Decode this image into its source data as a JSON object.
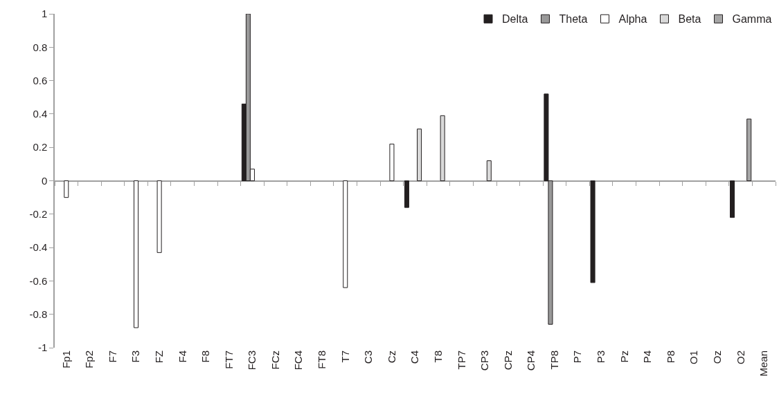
{
  "chart_data": {
    "type": "bar",
    "categories": [
      "Fp1",
      "Fp2",
      "F7",
      "F3",
      "FZ",
      "F4",
      "F8",
      "FT7",
      "FC3",
      "FCz",
      "FC4",
      "FT8",
      "T7",
      "C3",
      "Cz",
      "C4",
      "T8",
      "TP7",
      "CP3",
      "CPz",
      "CP4",
      "TP8",
      "P7",
      "P3",
      "Pz",
      "P4",
      "P8",
      "O1",
      "Oz",
      "O2",
      "Mean"
    ],
    "series": [
      {
        "name": "Delta",
        "color": "#231f20",
        "values": [
          null,
          null,
          null,
          null,
          null,
          null,
          null,
          null,
          0.46,
          null,
          null,
          null,
          null,
          null,
          null,
          -0.16,
          null,
          null,
          null,
          null,
          null,
          0.52,
          null,
          -0.61,
          null,
          null,
          null,
          null,
          null,
          -0.22,
          null
        ]
      },
      {
        "name": "Theta",
        "color": "#999999",
        "values": [
          null,
          null,
          null,
          null,
          null,
          null,
          null,
          null,
          1.0,
          null,
          null,
          null,
          null,
          null,
          null,
          null,
          null,
          null,
          null,
          null,
          null,
          -0.86,
          null,
          null,
          null,
          null,
          null,
          null,
          null,
          null,
          null
        ]
      },
      {
        "name": "Alpha",
        "color": "#ffffff",
        "values": [
          -0.1,
          null,
          null,
          -0.88,
          -0.43,
          null,
          null,
          null,
          0.07,
          null,
          null,
          null,
          -0.64,
          null,
          0.22,
          null,
          null,
          null,
          null,
          null,
          null,
          null,
          null,
          null,
          null,
          null,
          null,
          null,
          null,
          null,
          null
        ]
      },
      {
        "name": "Beta",
        "color": "#d9d9d9",
        "values": [
          null,
          null,
          null,
          null,
          null,
          null,
          null,
          null,
          null,
          null,
          null,
          null,
          null,
          null,
          null,
          0.31,
          0.39,
          null,
          0.12,
          null,
          null,
          null,
          null,
          null,
          null,
          null,
          null,
          null,
          null,
          null,
          null
        ]
      },
      {
        "name": "Gamma",
        "color": "#a6a6a6",
        "values": [
          null,
          null,
          null,
          null,
          null,
          null,
          null,
          null,
          null,
          null,
          null,
          null,
          null,
          null,
          null,
          null,
          null,
          null,
          null,
          null,
          null,
          null,
          null,
          null,
          null,
          null,
          null,
          null,
          null,
          0.37,
          null
        ]
      }
    ],
    "ylim": [
      -1,
      1
    ],
    "yticks": [
      -1,
      -0.8,
      -0.6,
      -0.4,
      -0.2,
      0,
      0.2,
      0.4,
      0.6,
      0.8,
      1
    ],
    "legend": "top right"
  }
}
